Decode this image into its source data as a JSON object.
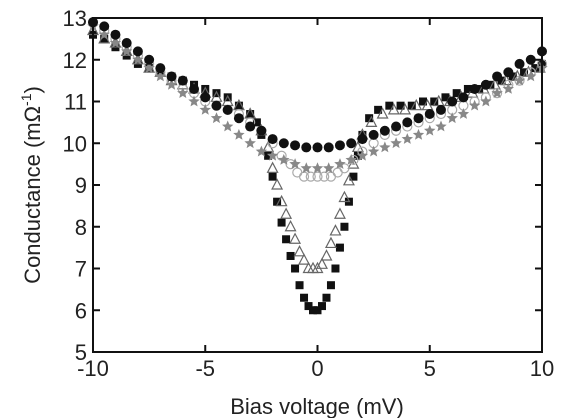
{
  "chart_data": {
    "type": "scatter",
    "title": "",
    "xlabel": "Bias voltage (mV)",
    "ylabel_main": "Conductance (mΩ",
    "ylabel_sup": "-1",
    "ylabel_close": ")",
    "xlim": [
      -10,
      10
    ],
    "ylim": [
      5,
      13
    ],
    "xticks": [
      -10,
      -5,
      0,
      5,
      10
    ],
    "xtick_labels": [
      "-10",
      "-5",
      "0",
      "5",
      "10"
    ],
    "yticks": [
      5,
      6,
      7,
      8,
      9,
      10,
      11,
      12,
      13
    ],
    "ytick_labels": [
      "5",
      "6",
      "7",
      "8",
      "9",
      "10",
      "11",
      "12",
      "13"
    ],
    "grid": false,
    "legend": "none",
    "series": [
      {
        "marker": "square-filled",
        "color": "#111111",
        "points": [
          [
            -10,
            12.6
          ],
          [
            -9.5,
            12.5
          ],
          [
            -9,
            12.3
          ],
          [
            -8.5,
            12.1
          ],
          [
            -8,
            11.9
          ],
          [
            -7.5,
            11.8
          ],
          [
            -7,
            11.7
          ],
          [
            -6.5,
            11.6
          ],
          [
            -6,
            11.5
          ],
          [
            -5.5,
            11.4
          ],
          [
            -5,
            11.3
          ],
          [
            -4.5,
            11.2
          ],
          [
            -4,
            11.1
          ],
          [
            -3.5,
            10.9
          ],
          [
            -3,
            10.7
          ],
          [
            -2.7,
            10.5
          ],
          [
            -2.5,
            10.2
          ],
          [
            -2.2,
            9.7
          ],
          [
            -2,
            9.2
          ],
          [
            -1.8,
            8.6
          ],
          [
            -1.6,
            8.1
          ],
          [
            -1.4,
            7.7
          ],
          [
            -1.2,
            7.3
          ],
          [
            -1,
            7.0
          ],
          [
            -0.8,
            6.6
          ],
          [
            -0.6,
            6.3
          ],
          [
            -0.4,
            6.1
          ],
          [
            -0.2,
            6.0
          ],
          [
            0,
            6.0
          ],
          [
            0.2,
            6.1
          ],
          [
            0.4,
            6.3
          ],
          [
            0.6,
            6.6
          ],
          [
            0.8,
            7.0
          ],
          [
            1,
            7.5
          ],
          [
            1.2,
            8.0
          ],
          [
            1.4,
            8.6
          ],
          [
            1.6,
            9.2
          ],
          [
            1.8,
            9.7
          ],
          [
            2,
            10.2
          ],
          [
            2.3,
            10.6
          ],
          [
            2.7,
            10.8
          ],
          [
            3.2,
            10.9
          ],
          [
            3.7,
            10.9
          ],
          [
            4.2,
            10.9
          ],
          [
            4.7,
            11.0
          ],
          [
            5.2,
            11.0
          ],
          [
            5.7,
            11.1
          ],
          [
            6.2,
            11.2
          ],
          [
            6.7,
            11.3
          ],
          [
            7.2,
            11.3
          ],
          [
            7.7,
            11.4
          ],
          [
            8.2,
            11.5
          ],
          [
            8.7,
            11.6
          ],
          [
            9.2,
            11.7
          ],
          [
            9.7,
            11.8
          ],
          [
            10,
            11.9
          ]
        ]
      },
      {
        "marker": "triangle-open",
        "color": "#666666",
        "points": [
          [
            -10,
            12.7
          ],
          [
            -9.5,
            12.5
          ],
          [
            -9,
            12.4
          ],
          [
            -8.5,
            12.2
          ],
          [
            -8,
            12.0
          ],
          [
            -7.5,
            11.8
          ],
          [
            -7,
            11.7
          ],
          [
            -6.5,
            11.5
          ],
          [
            -6,
            11.4
          ],
          [
            -5.5,
            11.3
          ],
          [
            -5,
            11.2
          ],
          [
            -4.5,
            11.1
          ],
          [
            -4,
            11.0
          ],
          [
            -3.5,
            10.9
          ],
          [
            -3,
            10.7
          ],
          [
            -2.5,
            10.3
          ],
          [
            -2.2,
            9.9
          ],
          [
            -2,
            9.4
          ],
          [
            -1.8,
            9.0
          ],
          [
            -1.6,
            8.6
          ],
          [
            -1.4,
            8.3
          ],
          [
            -1.2,
            8.0
          ],
          [
            -1,
            7.7
          ],
          [
            -0.8,
            7.4
          ],
          [
            -0.6,
            7.2
          ],
          [
            -0.4,
            7.0
          ],
          [
            -0.2,
            7.0
          ],
          [
            0,
            7.0
          ],
          [
            0.2,
            7.1
          ],
          [
            0.4,
            7.3
          ],
          [
            0.6,
            7.6
          ],
          [
            0.8,
            7.9
          ],
          [
            1,
            8.3
          ],
          [
            1.2,
            8.7
          ],
          [
            1.4,
            9.1
          ],
          [
            1.6,
            9.5
          ],
          [
            1.8,
            9.9
          ],
          [
            2,
            10.2
          ],
          [
            2.4,
            10.5
          ],
          [
            2.9,
            10.7
          ],
          [
            3.4,
            10.8
          ],
          [
            3.9,
            10.8
          ],
          [
            4.4,
            10.9
          ],
          [
            4.9,
            10.9
          ],
          [
            5.4,
            11.0
          ],
          [
            5.9,
            11.0
          ],
          [
            6.4,
            11.1
          ],
          [
            6.9,
            11.2
          ],
          [
            7.4,
            11.3
          ],
          [
            7.9,
            11.4
          ],
          [
            8.4,
            11.5
          ],
          [
            8.9,
            11.6
          ],
          [
            9.4,
            11.7
          ],
          [
            9.9,
            11.8
          ]
        ]
      },
      {
        "marker": "circle-open",
        "color": "#aaaaaa",
        "points": [
          [
            -10,
            12.9
          ],
          [
            -9.5,
            12.7
          ],
          [
            -9,
            12.5
          ],
          [
            -8.5,
            12.3
          ],
          [
            -8,
            12.1
          ],
          [
            -7.5,
            11.9
          ],
          [
            -7,
            11.7
          ],
          [
            -6.5,
            11.5
          ],
          [
            -6,
            11.3
          ],
          [
            -5.5,
            11.2
          ],
          [
            -5,
            11.0
          ],
          [
            -4.5,
            10.9
          ],
          [
            -4,
            10.8
          ],
          [
            -3.5,
            10.7
          ],
          [
            -3,
            10.5
          ],
          [
            -2.5,
            10.3
          ],
          [
            -2,
            10.0
          ],
          [
            -1.6,
            9.7
          ],
          [
            -1.2,
            9.5
          ],
          [
            -0.9,
            9.3
          ],
          [
            -0.6,
            9.2
          ],
          [
            -0.3,
            9.2
          ],
          [
            0,
            9.2
          ],
          [
            0.3,
            9.2
          ],
          [
            0.6,
            9.2
          ],
          [
            0.9,
            9.3
          ],
          [
            1.2,
            9.4
          ],
          [
            1.6,
            9.6
          ],
          [
            2,
            9.8
          ],
          [
            2.5,
            10.0
          ],
          [
            3,
            10.2
          ],
          [
            3.5,
            10.3
          ],
          [
            4,
            10.4
          ],
          [
            4.5,
            10.5
          ],
          [
            5,
            10.6
          ],
          [
            5.5,
            10.7
          ],
          [
            6,
            10.8
          ],
          [
            6.5,
            10.9
          ],
          [
            7,
            11.0
          ],
          [
            7.5,
            11.1
          ],
          [
            8,
            11.2
          ],
          [
            8.5,
            11.4
          ],
          [
            9,
            11.5
          ],
          [
            9.5,
            11.7
          ],
          [
            10,
            11.9
          ]
        ]
      },
      {
        "marker": "star-filled",
        "color": "#888888",
        "points": [
          [
            -10,
            12.8
          ],
          [
            -9.5,
            12.6
          ],
          [
            -9,
            12.4
          ],
          [
            -8.5,
            12.2
          ],
          [
            -8,
            12.0
          ],
          [
            -7.5,
            11.8
          ],
          [
            -7,
            11.6
          ],
          [
            -6.5,
            11.4
          ],
          [
            -6,
            11.2
          ],
          [
            -5.5,
            11.0
          ],
          [
            -5,
            10.8
          ],
          [
            -4.5,
            10.6
          ],
          [
            -4,
            10.4
          ],
          [
            -3.5,
            10.2
          ],
          [
            -3,
            10.0
          ],
          [
            -2.5,
            9.8
          ],
          [
            -2,
            9.7
          ],
          [
            -1.5,
            9.6
          ],
          [
            -1,
            9.5
          ],
          [
            -0.5,
            9.4
          ],
          [
            0,
            9.4
          ],
          [
            0.5,
            9.4
          ],
          [
            1,
            9.5
          ],
          [
            1.5,
            9.6
          ],
          [
            2,
            9.7
          ],
          [
            2.5,
            9.8
          ],
          [
            3,
            9.9
          ],
          [
            3.5,
            10.0
          ],
          [
            4,
            10.1
          ],
          [
            4.5,
            10.2
          ],
          [
            5,
            10.3
          ],
          [
            5.5,
            10.4
          ],
          [
            6,
            10.6
          ],
          [
            6.5,
            10.7
          ],
          [
            7,
            10.9
          ],
          [
            7.5,
            11.0
          ],
          [
            8,
            11.2
          ],
          [
            8.5,
            11.3
          ],
          [
            9,
            11.5
          ],
          [
            9.5,
            11.6
          ],
          [
            10,
            11.8
          ]
        ]
      },
      {
        "marker": "circle-filled",
        "color": "#111111",
        "points": [
          [
            -10,
            12.9
          ],
          [
            -9.5,
            12.8
          ],
          [
            -9,
            12.6
          ],
          [
            -8.5,
            12.4
          ],
          [
            -8,
            12.2
          ],
          [
            -7.5,
            12.0
          ],
          [
            -7,
            11.8
          ],
          [
            -6.5,
            11.6
          ],
          [
            -6,
            11.5
          ],
          [
            -5.5,
            11.3
          ],
          [
            -5,
            11.1
          ],
          [
            -4.5,
            10.9
          ],
          [
            -4,
            10.8
          ],
          [
            -3.5,
            10.6
          ],
          [
            -3,
            10.4
          ],
          [
            -2.5,
            10.3
          ],
          [
            -2,
            10.1
          ],
          [
            -1.5,
            10.0
          ],
          [
            -1,
            9.95
          ],
          [
            -0.5,
            9.9
          ],
          [
            0,
            9.9
          ],
          [
            0.5,
            9.9
          ],
          [
            1,
            9.95
          ],
          [
            1.5,
            10.0
          ],
          [
            2,
            10.1
          ],
          [
            2.5,
            10.2
          ],
          [
            3,
            10.3
          ],
          [
            3.5,
            10.4
          ],
          [
            4,
            10.5
          ],
          [
            4.5,
            10.6
          ],
          [
            5,
            10.7
          ],
          [
            5.5,
            10.8
          ],
          [
            6,
            11.0
          ],
          [
            6.5,
            11.1
          ],
          [
            7,
            11.3
          ],
          [
            7.5,
            11.4
          ],
          [
            8,
            11.6
          ],
          [
            8.5,
            11.7
          ],
          [
            9,
            11.9
          ],
          [
            9.5,
            12.0
          ],
          [
            10,
            12.2
          ]
        ]
      }
    ]
  }
}
